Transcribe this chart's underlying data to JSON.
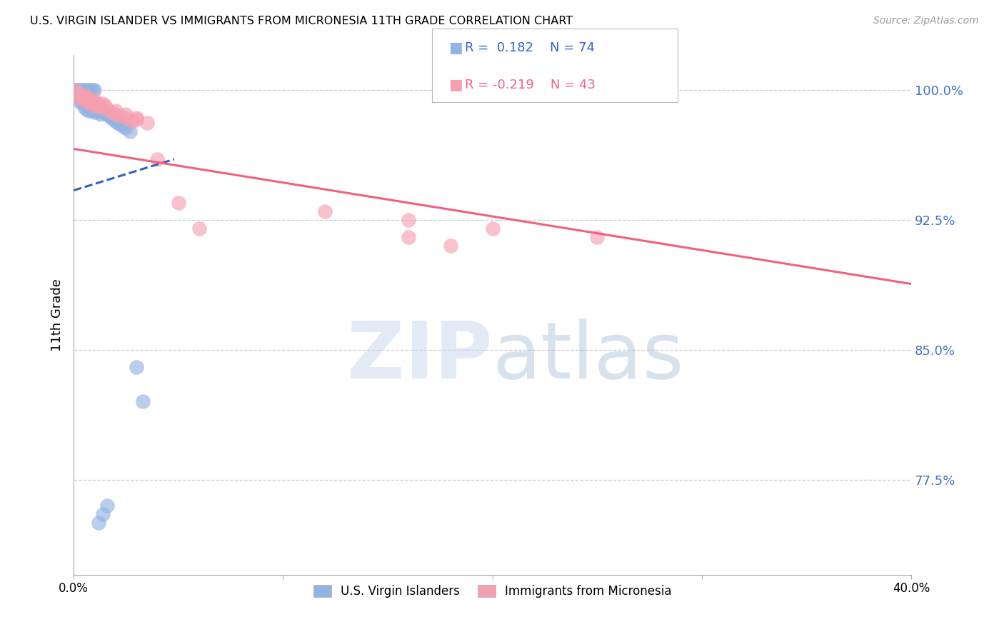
{
  "title": "U.S. VIRGIN ISLANDER VS IMMIGRANTS FROM MICRONESIA 11TH GRADE CORRELATION CHART",
  "source": "Source: ZipAtlas.com",
  "ylabel": "11th Grade",
  "xlim": [
    0.0,
    0.4
  ],
  "ylim": [
    0.72,
    1.02
  ],
  "yticks": [
    0.775,
    0.85,
    0.925,
    1.0
  ],
  "ytick_labels": [
    "77.5%",
    "85.0%",
    "92.5%",
    "100.0%"
  ],
  "xticks": [
    0.0,
    0.1,
    0.2,
    0.3,
    0.4
  ],
  "xtick_labels": [
    "0.0%",
    "",
    "",
    "",
    "40.0%"
  ],
  "color_blue": "#92b4e3",
  "color_pink": "#f5a0b0",
  "trendline_blue": "#3060c0",
  "trendline_pink": "#f06080",
  "legend_label_blue": "U.S. Virgin Islanders",
  "legend_label_pink": "Immigrants from Micronesia",
  "blue_x": [
    0.0008,
    0.0012,
    0.0015,
    0.0018,
    0.002,
    0.002,
    0.003,
    0.003,
    0.003,
    0.004,
    0.004,
    0.004,
    0.005,
    0.005,
    0.005,
    0.005,
    0.006,
    0.006,
    0.006,
    0.006,
    0.007,
    0.007,
    0.007,
    0.007,
    0.008,
    0.008,
    0.008,
    0.009,
    0.009,
    0.009,
    0.01,
    0.01,
    0.01,
    0.011,
    0.011,
    0.012,
    0.012,
    0.013,
    0.013,
    0.014,
    0.015,
    0.016,
    0.017,
    0.018,
    0.019,
    0.02,
    0.021,
    0.022,
    0.024,
    0.025,
    0.027,
    0.03,
    0.033,
    0.003,
    0.004,
    0.005,
    0.006,
    0.007,
    0.008,
    0.009,
    0.01,
    0.0015,
    0.002,
    0.003,
    0.004,
    0.005,
    0.006,
    0.007,
    0.008,
    0.009,
    0.01,
    0.012,
    0.014,
    0.016
  ],
  "blue_y": [
    1.0,
    0.999,
    1.0,
    0.998,
    0.997,
    0.995,
    0.998,
    0.996,
    0.993,
    0.998,
    0.996,
    0.993,
    0.997,
    0.995,
    0.993,
    0.99,
    0.996,
    0.994,
    0.992,
    0.989,
    0.995,
    0.993,
    0.991,
    0.988,
    0.994,
    0.992,
    0.99,
    0.993,
    0.991,
    0.988,
    0.992,
    0.99,
    0.987,
    0.991,
    0.988,
    0.99,
    0.987,
    0.989,
    0.986,
    0.988,
    0.987,
    0.986,
    0.985,
    0.984,
    0.983,
    0.982,
    0.981,
    0.98,
    0.979,
    0.978,
    0.976,
    0.84,
    0.82,
    0.999,
    0.998,
    0.997,
    0.996,
    0.995,
    0.994,
    0.993,
    0.992,
    1.0,
    1.0,
    1.0,
    1.0,
    1.0,
    1.0,
    1.0,
    1.0,
    1.0,
    1.0,
    0.75,
    0.755,
    0.76
  ],
  "pink_x": [
    0.001,
    0.002,
    0.003,
    0.003,
    0.005,
    0.006,
    0.006,
    0.007,
    0.008,
    0.008,
    0.009,
    0.01,
    0.01,
    0.011,
    0.012,
    0.013,
    0.014,
    0.015,
    0.016,
    0.018,
    0.02,
    0.022,
    0.025,
    0.028,
    0.03,
    0.035,
    0.04,
    0.05,
    0.06,
    0.12,
    0.16,
    0.2,
    0.25,
    0.16,
    0.18,
    0.005,
    0.007,
    0.009,
    0.011,
    0.013,
    0.02,
    0.025,
    0.03
  ],
  "pink_y": [
    1.0,
    0.998,
    0.997,
    0.995,
    0.997,
    0.996,
    0.993,
    0.995,
    0.994,
    0.992,
    0.993,
    0.994,
    0.991,
    0.992,
    0.991,
    0.99,
    0.992,
    0.991,
    0.989,
    0.987,
    0.986,
    0.985,
    0.984,
    0.982,
    0.983,
    0.981,
    0.96,
    0.935,
    0.92,
    0.93,
    0.925,
    0.92,
    0.915,
    0.915,
    0.91,
    0.995,
    0.994,
    0.993,
    0.992,
    0.991,
    0.988,
    0.986,
    0.984
  ],
  "blue_trendline_x": [
    0.0,
    0.048
  ],
  "blue_trendline_y": [
    0.942,
    0.96
  ],
  "pink_trendline_x": [
    0.0,
    0.4
  ],
  "pink_trendline_y": [
    0.966,
    0.888
  ]
}
